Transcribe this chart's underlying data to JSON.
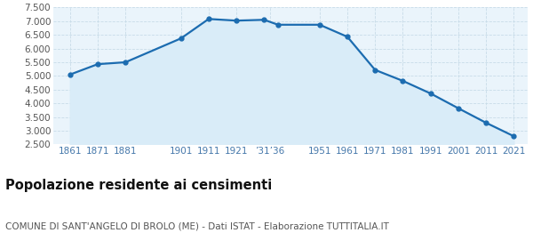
{
  "years": [
    1861,
    1871,
    1881,
    1901,
    1911,
    1921,
    1931,
    1936,
    1951,
    1961,
    1971,
    1981,
    1991,
    2001,
    2011,
    2021
  ],
  "population": [
    5050,
    5430,
    5500,
    6370,
    7080,
    7020,
    7050,
    6870,
    6870,
    6430,
    5220,
    4820,
    4360,
    3820,
    3290,
    2800
  ],
  "ylim": [
    2500,
    7500
  ],
  "xlim": [
    1855,
    2026
  ],
  "yticks": [
    2500,
    3000,
    3500,
    4000,
    4500,
    5000,
    5500,
    6000,
    6500,
    7000,
    7500
  ],
  "x_tick_positions": [
    1861,
    1871,
    1881,
    1901,
    1911,
    1921,
    1933,
    1951,
    1961,
    1971,
    1981,
    1991,
    2001,
    2011,
    2021
  ],
  "x_tick_labels": [
    "1861",
    "1871",
    "1881",
    "1901",
    "1911",
    "1921",
    "’31’36",
    "1951",
    "1961",
    "1971",
    "1981",
    "1991",
    "2001",
    "2011",
    "2021"
  ],
  "line_color": "#1c6cb0",
  "fill_color": "#d9ecf8",
  "bg_color": "#eaf4fb",
  "fig_bg": "#ffffff",
  "grid_color": "#c8dce8",
  "tick_color": "#4477aa",
  "ytick_color": "#555555",
  "title": "Popolazione residente ai censimenti",
  "subtitle": "COMUNE DI SANT'ANGELO DI BROLO (ME) - Dati ISTAT - Elaborazione TUTTITALIA.IT",
  "title_fontsize": 10.5,
  "subtitle_fontsize": 7.5
}
